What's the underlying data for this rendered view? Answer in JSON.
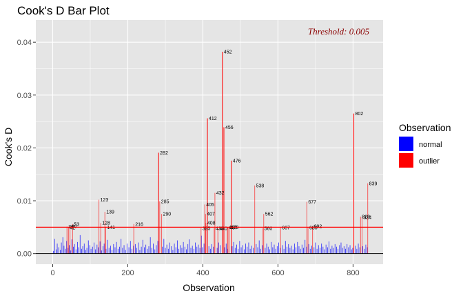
{
  "title": "Cook's D Bar Plot",
  "annotation": "Threshold: 0.005",
  "legend": {
    "title": "Observation",
    "entries": [
      {
        "label": "normal",
        "color": "#0000ff"
      },
      {
        "label": "outlier",
        "color": "#ff0000"
      }
    ]
  },
  "colors": {
    "panel": "#e5e5e5",
    "grid": "#ffffff",
    "threshold_line": "#ff0000",
    "annotation": "#8b0000"
  },
  "chart_data": {
    "type": "bar",
    "xlabel": "Observation",
    "ylabel": "Cook's D",
    "xlim": [
      -45,
      880
    ],
    "ylim": [
      -0.002,
      0.0442
    ],
    "x_ticks": [
      0,
      200,
      400,
      600,
      800
    ],
    "y_ticks": [
      0.0,
      0.01,
      0.02,
      0.03,
      0.04
    ],
    "y_tick_labels": [
      "0.00",
      "0.01",
      "0.02",
      "0.03",
      "0.04"
    ],
    "threshold": 0.005,
    "grid": true,
    "legend_position": "right",
    "normal_series": [
      [
        2,
        0.0005
      ],
      [
        5,
        0.0028
      ],
      [
        9,
        0.0008
      ],
      [
        12,
        0.0019
      ],
      [
        16,
        0.0012
      ],
      [
        20,
        0.0007
      ],
      [
        23,
        0.0021
      ],
      [
        27,
        0.0031
      ],
      [
        30,
        0.0015
      ],
      [
        34,
        0.0009
      ],
      [
        37,
        0.0024
      ],
      [
        41,
        0.0011
      ],
      [
        44,
        0.0016
      ],
      [
        48,
        0.0006
      ],
      [
        51,
        0.0027
      ],
      [
        55,
        0.0013
      ],
      [
        58,
        0.0018
      ],
      [
        62,
        0.0008
      ],
      [
        66,
        0.0022
      ],
      [
        69,
        0.0012
      ],
      [
        73,
        0.0035
      ],
      [
        77,
        0.0009
      ],
      [
        80,
        0.0014
      ],
      [
        84,
        0.0019
      ],
      [
        88,
        0.0007
      ],
      [
        91,
        0.0011
      ],
      [
        95,
        0.0025
      ],
      [
        99,
        0.0016
      ],
      [
        102,
        0.0009
      ],
      [
        106,
        0.0013
      ],
      [
        110,
        0.0021
      ],
      [
        114,
        0.0008
      ],
      [
        118,
        0.0017
      ],
      [
        121,
        0.0012
      ],
      [
        126,
        0.0023
      ],
      [
        130,
        0.0006
      ],
      [
        134,
        0.0014
      ],
      [
        137,
        0.0019
      ],
      [
        142,
        0.0009
      ],
      [
        146,
        0.0026
      ],
      [
        150,
        0.0011
      ],
      [
        154,
        0.0015
      ],
      [
        158,
        0.0007
      ],
      [
        162,
        0.0018
      ],
      [
        166,
        0.0012
      ],
      [
        170,
        0.0022
      ],
      [
        174,
        0.0009
      ],
      [
        178,
        0.0013
      ],
      [
        182,
        0.0028
      ],
      [
        186,
        0.0011
      ],
      [
        190,
        0.0016
      ],
      [
        194,
        0.0007
      ],
      [
        198,
        0.0019
      ],
      [
        203,
        0.0012
      ],
      [
        207,
        0.0024
      ],
      [
        211,
        0.0009
      ],
      [
        215,
        0.0015
      ],
      [
        220,
        0.0018
      ],
      [
        224,
        0.0011
      ],
      [
        228,
        0.0021
      ],
      [
        232,
        0.0007
      ],
      [
        236,
        0.0013
      ],
      [
        240,
        0.0026
      ],
      [
        244,
        0.0012
      ],
      [
        248,
        0.0017
      ],
      [
        252,
        0.0009
      ],
      [
        256,
        0.0014
      ],
      [
        260,
        0.0031
      ],
      [
        264,
        0.0011
      ],
      [
        268,
        0.0019
      ],
      [
        272,
        0.0008
      ],
      [
        276,
        0.0016
      ],
      [
        280,
        0.0024
      ],
      [
        292,
        0.0013
      ],
      [
        296,
        0.0028
      ],
      [
        300,
        0.0011
      ],
      [
        304,
        0.0017
      ],
      [
        308,
        0.0009
      ],
      [
        312,
        0.0021
      ],
      [
        316,
        0.0014
      ],
      [
        320,
        0.0007
      ],
      [
        324,
        0.0019
      ],
      [
        328,
        0.0012
      ],
      [
        332,
        0.0025
      ],
      [
        336,
        0.0009
      ],
      [
        340,
        0.0016
      ],
      [
        344,
        0.0011
      ],
      [
        348,
        0.0022
      ],
      [
        352,
        0.0013
      ],
      [
        356,
        0.0008
      ],
      [
        360,
        0.0018
      ],
      [
        364,
        0.0027
      ],
      [
        368,
        0.0011
      ],
      [
        372,
        0.0015
      ],
      [
        376,
        0.0009
      ],
      [
        380,
        0.0021
      ],
      [
        384,
        0.0013
      ],
      [
        388,
        0.0017
      ],
      [
        392,
        0.0011
      ],
      [
        396,
        0.0034
      ],
      [
        399,
        0.0012
      ],
      [
        403,
        0.0019
      ],
      [
        416,
        0.0014
      ],
      [
        420,
        0.0009
      ],
      [
        424,
        0.0018
      ],
      [
        428,
        0.0013
      ],
      [
        438,
        0.0011
      ],
      [
        442,
        0.0021
      ],
      [
        446,
        0.0016
      ],
      [
        458,
        0.0012
      ],
      [
        462,
        0.0019
      ],
      [
        466,
        0.0009
      ],
      [
        478,
        0.0014
      ],
      [
        482,
        0.0022
      ],
      [
        486,
        0.0011
      ],
      [
        490,
        0.0017
      ],
      [
        494,
        0.0009
      ],
      [
        498,
        0.0024
      ],
      [
        502,
        0.0012
      ],
      [
        506,
        0.0016
      ],
      [
        510,
        0.0008
      ],
      [
        514,
        0.0019
      ],
      [
        518,
        0.0013
      ],
      [
        522,
        0.0021
      ],
      [
        526,
        0.0009
      ],
      [
        530,
        0.0015
      ],
      [
        534,
        0.0011
      ],
      [
        542,
        0.0018
      ],
      [
        546,
        0.0012
      ],
      [
        550,
        0.0025
      ],
      [
        554,
        0.0009
      ],
      [
        558,
        0.0016
      ],
      [
        566,
        0.0011
      ],
      [
        570,
        0.0019
      ],
      [
        574,
        0.0013
      ],
      [
        578,
        0.0008
      ],
      [
        582,
        0.0022
      ],
      [
        586,
        0.0012
      ],
      [
        590,
        0.0017
      ],
      [
        594,
        0.0009
      ],
      [
        598,
        0.0014
      ],
      [
        602,
        0.0021
      ],
      [
        606,
        0.0011
      ],
      [
        612,
        0.0016
      ],
      [
        616,
        0.0009
      ],
      [
        620,
        0.0024
      ],
      [
        624,
        0.0013
      ],
      [
        628,
        0.0018
      ],
      [
        632,
        0.0011
      ],
      [
        636,
        0.0015
      ],
      [
        640,
        0.0008
      ],
      [
        644,
        0.0019
      ],
      [
        648,
        0.0012
      ],
      [
        652,
        0.0022
      ],
      [
        656,
        0.0014
      ],
      [
        660,
        0.0009
      ],
      [
        664,
        0.0017
      ],
      [
        668,
        0.0011
      ],
      [
        672,
        0.0026
      ],
      [
        676,
        0.0013
      ],
      [
        682,
        0.0018
      ],
      [
        686,
        0.0009
      ],
      [
        690,
        0.0015
      ],
      [
        696,
        0.0012
      ],
      [
        700,
        0.0021
      ],
      [
        704,
        0.0009
      ],
      [
        708,
        0.0016
      ],
      [
        712,
        0.0011
      ],
      [
        716,
        0.0019
      ],
      [
        720,
        0.0013
      ],
      [
        724,
        0.0008
      ],
      [
        728,
        0.0017
      ],
      [
        732,
        0.0012
      ],
      [
        736,
        0.0023
      ],
      [
        740,
        0.0009
      ],
      [
        744,
        0.0015
      ],
      [
        748,
        0.0011
      ],
      [
        752,
        0.0018
      ],
      [
        756,
        0.0013
      ],
      [
        760,
        0.0009
      ],
      [
        764,
        0.0016
      ],
      [
        768,
        0.0021
      ],
      [
        772,
        0.0011
      ],
      [
        776,
        0.0014
      ],
      [
        780,
        0.0009
      ],
      [
        784,
        0.0018
      ],
      [
        788,
        0.0012
      ],
      [
        792,
        0.0016
      ],
      [
        796,
        0.0008
      ],
      [
        799,
        0.0011
      ],
      [
        806,
        0.0015
      ],
      [
        810,
        0.0009
      ],
      [
        814,
        0.0019
      ],
      [
        818,
        0.0012
      ],
      [
        826,
        0.0014
      ],
      [
        830,
        0.0009
      ],
      [
        834,
        0.0017
      ],
      [
        838,
        0.0012
      ]
    ],
    "outlier_series": [
      [
        38,
        0.0051,
        "38"
      ],
      [
        42,
        0.0049,
        "42"
      ],
      [
        46,
        0.0052,
        "46"
      ],
      [
        53,
        0.0056,
        "53"
      ],
      [
        123,
        0.0102,
        "123"
      ],
      [
        128,
        0.0058,
        "128"
      ],
      [
        139,
        0.0079,
        "139"
      ],
      [
        141,
        0.005,
        "141"
      ],
      [
        216,
        0.0056,
        "216"
      ],
      [
        282,
        0.0191,
        "282"
      ],
      [
        285,
        0.0099,
        "285"
      ],
      [
        290,
        0.0075,
        "290"
      ],
      [
        395,
        0.0048,
        "395"
      ],
      [
        405,
        0.0093,
        "405"
      ],
      [
        407,
        0.0075,
        "407"
      ],
      [
        408,
        0.0058,
        "408"
      ],
      [
        412,
        0.0256,
        "412"
      ],
      [
        430,
        0.0048,
        "430"
      ],
      [
        432,
        0.0115,
        "432"
      ],
      [
        440,
        0.0048,
        "440"
      ],
      [
        452,
        0.0382,
        "452"
      ],
      [
        456,
        0.0239,
        "456"
      ],
      [
        465,
        0.005,
        "465"
      ],
      [
        467,
        0.0049,
        "467"
      ],
      [
        470,
        0.005,
        "470"
      ],
      [
        476,
        0.0176,
        "476"
      ],
      [
        538,
        0.0129,
        "538"
      ],
      [
        560,
        0.0048,
        "560"
      ],
      [
        562,
        0.0075,
        "562"
      ],
      [
        607,
        0.0049,
        "607"
      ],
      [
        677,
        0.0098,
        "677"
      ],
      [
        680,
        0.0049,
        "680"
      ],
      [
        692,
        0.0052,
        "692"
      ],
      [
        802,
        0.0265,
        "802"
      ],
      [
        820,
        0.007,
        "820"
      ],
      [
        824,
        0.0069,
        "824"
      ],
      [
        839,
        0.0133,
        "839"
      ]
    ]
  }
}
